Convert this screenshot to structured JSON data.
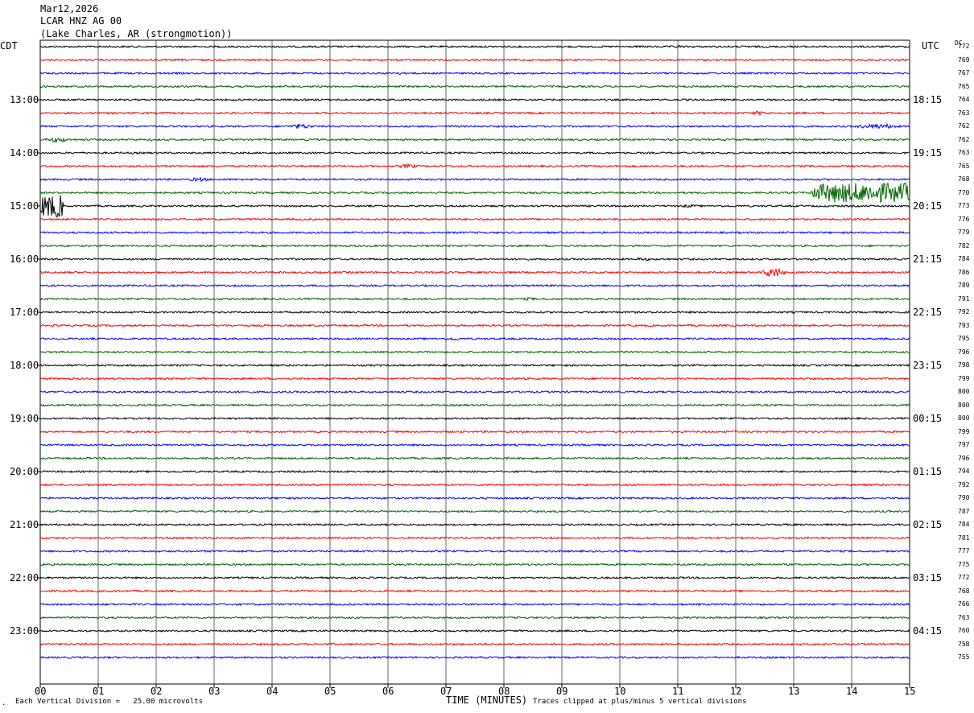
{
  "header": {
    "date": "Mar12,2026",
    "station": "LCAR HNZ AG 00",
    "location": "(Lake Charles, AR (strongmotion))"
  },
  "left_zone_label": "CDT",
  "right_zone_label": "UTC",
  "dc_label": "DC",
  "footer": {
    "scale_note": "Each Vertical Division =   25.00 microvolts",
    "xlabel": "TIME (MINUTES)",
    "clip_note": "Traces clipped at plus/minus 5 vertical divisions",
    "corner_mark": "."
  },
  "chart_data": {
    "type": "line",
    "x_ticks": [
      "00",
      "01",
      "02",
      "03",
      "04",
      "05",
      "06",
      "07",
      "08",
      "09",
      "10",
      "11",
      "12",
      "13",
      "14",
      "15"
    ],
    "xlim": [
      0,
      15
    ],
    "grid_vertical": true,
    "trace_colors": [
      "#000000",
      "#ff0000",
      "#0000ff",
      "#006400"
    ],
    "left_time_labels": [
      "13:00",
      "14:00",
      "15:00",
      "16:00",
      "17:00",
      "18:00",
      "19:00",
      "20:00",
      "21:00",
      "22:00",
      "23:00"
    ],
    "right_time_labels": [
      "18:15",
      "19:15",
      "20:15",
      "21:15",
      "22:15",
      "23:15",
      "00:15",
      "01:15",
      "02:15",
      "03:15",
      "04:15"
    ],
    "dc_offsets": [
      "772",
      "769",
      "767",
      "765",
      "764",
      "763",
      "762",
      "762",
      "763",
      "765",
      "768",
      "770",
      "773",
      "776",
      "779",
      "782",
      "784",
      "786",
      "789",
      "791",
      "792",
      "793",
      "795",
      "796",
      "798",
      "799",
      "800",
      "800",
      "800",
      "799",
      "797",
      "796",
      "794",
      "792",
      "790",
      "787",
      "784",
      "781",
      "777",
      "775",
      "772",
      "768",
      "766",
      "763",
      "760",
      "758",
      "755"
    ],
    "events": [
      {
        "trace": 2,
        "start_min": 6.0,
        "end_min": 6.3,
        "amp": 2.0
      },
      {
        "trace": 0,
        "start_min": 10.9,
        "end_min": 11.1,
        "amp": 2.0
      },
      {
        "trace": 5,
        "start_min": 12.2,
        "end_min": 12.6,
        "amp": 2.5
      },
      {
        "trace": 6,
        "start_min": 4.2,
        "end_min": 4.8,
        "amp": 3.0
      },
      {
        "trace": 6,
        "start_min": 13.9,
        "end_min": 15.0,
        "amp": 3.0
      },
      {
        "trace": 7,
        "start_min": 0.0,
        "end_min": 0.6,
        "amp": 3.0
      },
      {
        "trace": 9,
        "start_min": 6.1,
        "end_min": 6.6,
        "amp": 2.5
      },
      {
        "trace": 10,
        "start_min": 2.5,
        "end_min": 3.0,
        "amp": 2.5
      },
      {
        "trace": 11,
        "start_min": 13.3,
        "end_min": 15.0,
        "amp": 12.0
      },
      {
        "trace": 12,
        "start_min": 0.0,
        "end_min": 0.4,
        "amp": 14.0
      },
      {
        "trace": 12,
        "start_min": 11.0,
        "end_min": 11.4,
        "amp": 2.0
      },
      {
        "trace": 16,
        "start_min": 10.2,
        "end_min": 10.6,
        "amp": 2.0
      },
      {
        "trace": 17,
        "start_min": 12.4,
        "end_min": 12.9,
        "amp": 6.0
      },
      {
        "trace": 19,
        "start_min": 8.3,
        "end_min": 8.6,
        "amp": 2.0
      },
      {
        "trace": 22,
        "start_min": 7.0,
        "end_min": 7.3,
        "amp": 2.0
      }
    ]
  }
}
